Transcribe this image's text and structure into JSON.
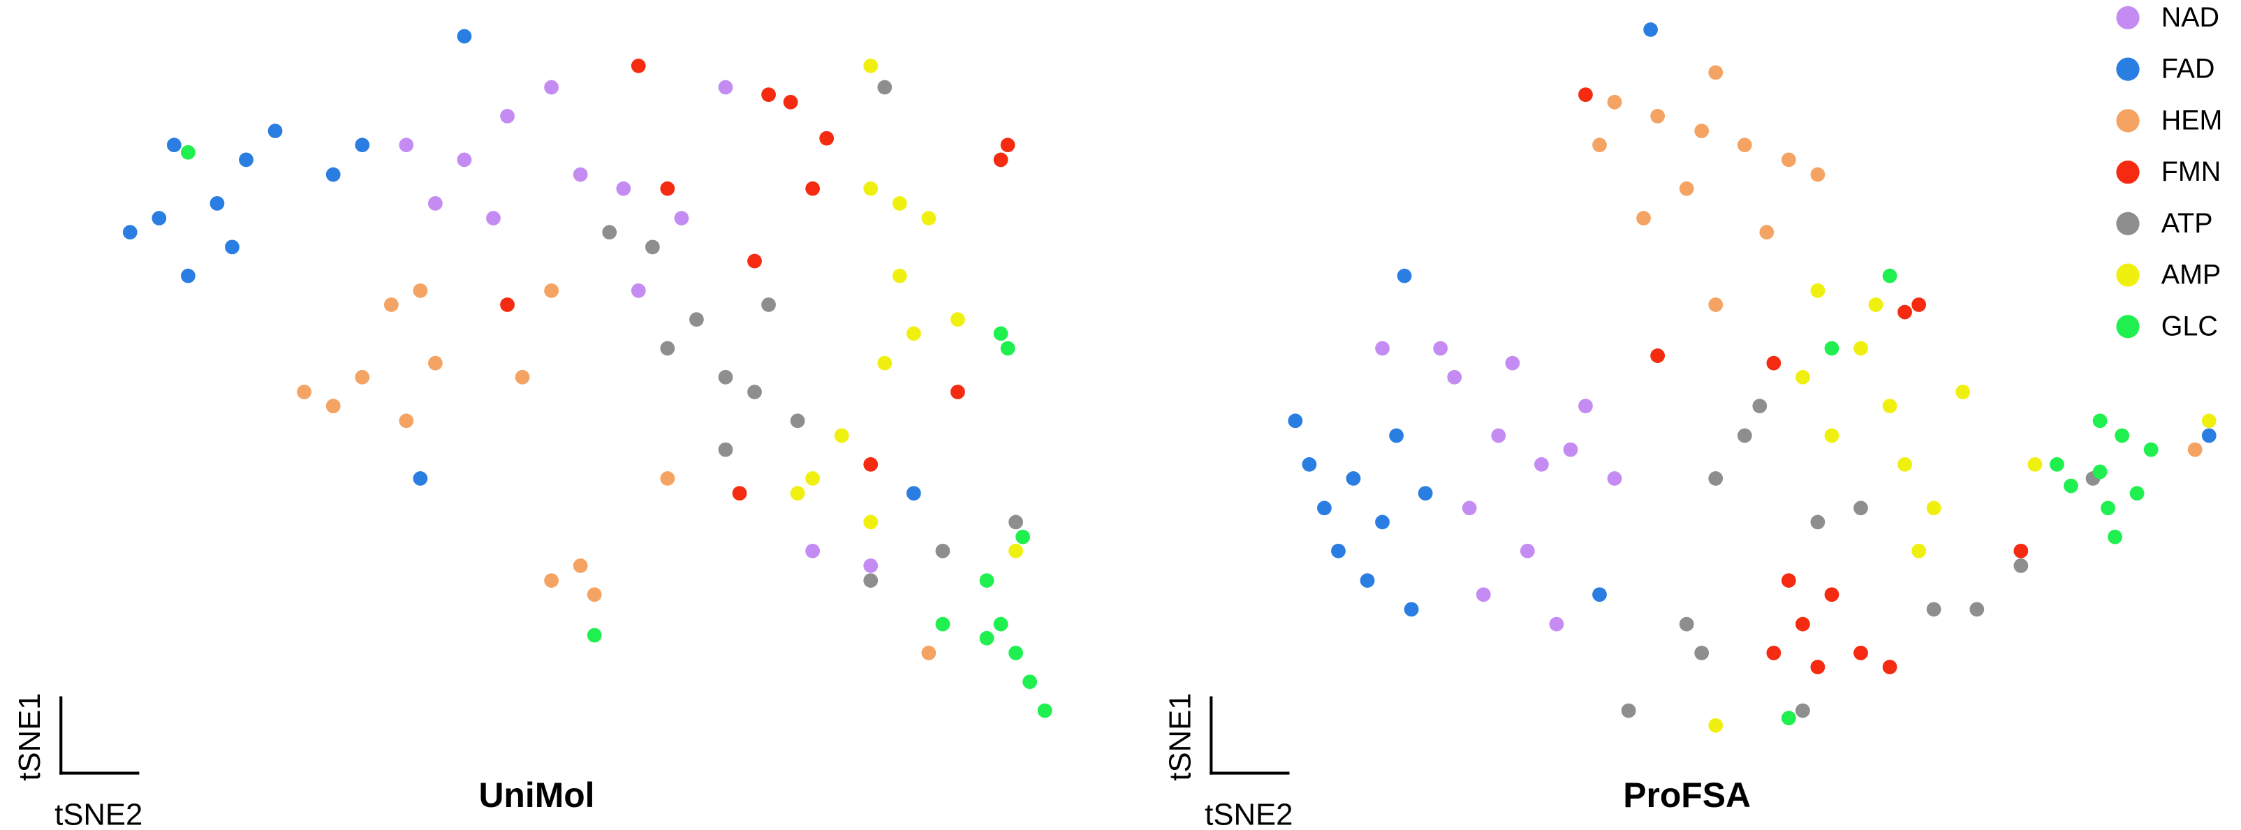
{
  "chart_data": [
    {
      "type": "scatter",
      "title": "UniMol",
      "x_label": "tSNE2",
      "y_label": "tSNE1",
      "xlim": [
        0,
        100
      ],
      "ylim": [
        0,
        100
      ],
      "series": [
        {
          "name": "NAD",
          "color": "#c48cf2",
          "x": [
            42.0,
            37.7,
            34.8,
            46.4,
            49.3,
            40.6,
            31.9,
            53.6,
            55.1,
            59.4,
            63.8,
            78.3,
            72.5
          ],
          "y": [
            86.3,
            80.4,
            74.5,
            90.2,
            78.4,
            72.5,
            82.4,
            76.5,
            62.7,
            72.5,
            90.2,
            25.5,
            27.5
          ]
        },
        {
          "name": "FAD",
          "color": "#2a7de1",
          "x": [
            13.0,
            7.2,
            4.3,
            10.1,
            15.9,
            18.8,
            8.7,
            14.5,
            24.6,
            27.5,
            33.3,
            82.6,
            37.7
          ],
          "y": [
            74.5,
            72.5,
            70.6,
            64.7,
            80.4,
            84.3,
            82.4,
            68.6,
            78.4,
            82.4,
            37.3,
            35.3,
            97.1
          ]
        },
        {
          "name": "HEM",
          "color": "#f5a362",
          "x": [
            24.6,
            27.5,
            21.7,
            31.9,
            34.8,
            30.4,
            33.3,
            49.3,
            46.4,
            50.7,
            43.5,
            46.4,
            84.1,
            58.0
          ],
          "y": [
            47.1,
            51.0,
            49.0,
            45.1,
            52.9,
            60.8,
            62.7,
            25.5,
            23.5,
            21.6,
            51.0,
            62.7,
            13.7,
            37.3
          ]
        },
        {
          "name": "FMN",
          "color": "#f42b10",
          "x": [
            92.0,
            91.3,
            68.1,
            70.3,
            73.9,
            55.1,
            42.0,
            58.0,
            66.7,
            72.5,
            78.3,
            65.2,
            87.0
          ],
          "y": [
            82.4,
            80.4,
            89.2,
            88.2,
            83.3,
            93.1,
            60.8,
            76.5,
            66.7,
            76.5,
            39.2,
            35.3,
            49.0
          ]
        },
        {
          "name": "ATP",
          "color": "#8e8e8e",
          "x": [
            63.8,
            66.7,
            60.9,
            58.0,
            56.5,
            68.1,
            71.0,
            78.3,
            85.5,
            79.7,
            92.8,
            63.8,
            52.2
          ],
          "y": [
            51.0,
            49.0,
            58.8,
            54.9,
            68.6,
            60.8,
            45.1,
            23.5,
            27.5,
            90.2,
            31.4,
            41.2,
            70.6
          ]
        },
        {
          "name": "AMP",
          "color": "#f0f010",
          "x": [
            81.2,
            78.3,
            84.1,
            79.7,
            82.6,
            87.0,
            81.2,
            72.5,
            71.0,
            78.3,
            92.8,
            75.4,
            78.3
          ],
          "y": [
            74.5,
            76.5,
            72.5,
            52.9,
            56.9,
            58.8,
            64.7,
            37.3,
            35.3,
            31.4,
            27.5,
            43.1,
            93.1
          ]
        },
        {
          "name": "GLC",
          "color": "#1ff050",
          "x": [
            91.3,
            92.0,
            91.3,
            94.2,
            92.8,
            89.9,
            85.5,
            95.7,
            93.5,
            89.9,
            50.7,
            10.1
          ],
          "y": [
            56.9,
            54.9,
            17.6,
            9.8,
            13.7,
            15.7,
            17.6,
            5.9,
            29.4,
            23.5,
            16.1,
            81.4
          ]
        }
      ]
    },
    {
      "type": "scatter",
      "title": "ProFSA",
      "x_label": "tSNE2",
      "y_label": "tSNE1",
      "xlim": [
        0,
        100
      ],
      "ylim": [
        0,
        100
      ],
      "legend": "upper right",
      "series": [
        {
          "name": "NAD",
          "color": "#c48cf2",
          "x": [
            21.7,
            26.1,
            30.4,
            33.3,
            23.2,
            29.0,
            20.3,
            27.5,
            24.6,
            34.8,
            31.9,
            37.7,
            14.5
          ],
          "y": [
            51.0,
            43.1,
            39.2,
            41.2,
            33.3,
            27.5,
            54.9,
            52.9,
            21.6,
            47.1,
            17.6,
            37.3,
            54.9
          ]
        },
        {
          "name": "FAD",
          "color": "#2a7de1",
          "x": [
            11.6,
            7.2,
            14.5,
            10.1,
            15.9,
            13.0,
            8.7,
            17.4,
            5.8,
            18.8,
            16.7,
            36.2,
            97.1,
            41.3
          ],
          "y": [
            37.3,
            39.2,
            31.4,
            27.5,
            43.1,
            23.5,
            33.3,
            19.6,
            45.1,
            35.3,
            64.7,
            21.6,
            43.1,
            98.0
          ]
        },
        {
          "name": "HEM",
          "color": "#f5a362",
          "x": [
            46.4,
            42.0,
            50.7,
            55.1,
            44.9,
            37.7,
            58.0,
            40.6,
            47.8,
            52.9,
            95.7,
            47.8,
            36.2
          ],
          "y": [
            84.3,
            86.3,
            82.4,
            80.4,
            76.5,
            88.2,
            78.4,
            72.5,
            92.2,
            70.6,
            41.2,
            60.8,
            82.4
          ]
        },
        {
          "name": "FMN",
          "color": "#f42b10",
          "x": [
            56.5,
            53.6,
            59.4,
            62.3,
            65.2,
            55.1,
            58.0,
            66.7,
            68.1,
            34.8,
            42.0,
            53.6,
            78.3
          ],
          "y": [
            17.6,
            13.7,
            21.6,
            13.7,
            11.8,
            23.5,
            11.8,
            59.8,
            60.8,
            89.2,
            53.9,
            52.9,
            27.5
          ]
        },
        {
          "name": "ATP",
          "color": "#8e8e8e",
          "x": [
            46.4,
            44.9,
            47.8,
            50.7,
            52.2,
            58.0,
            69.6,
            73.9,
            62.3,
            56.5,
            39.1,
            78.3,
            85.5
          ],
          "y": [
            13.7,
            17.6,
            37.3,
            43.1,
            47.1,
            31.4,
            19.6,
            19.6,
            33.3,
            5.9,
            5.9,
            25.5,
            37.3
          ]
        },
        {
          "name": "AMP",
          "color": "#f0f010",
          "x": [
            62.3,
            65.2,
            66.7,
            59.4,
            56.5,
            69.6,
            63.8,
            72.5,
            58.0,
            68.1,
            97.1,
            47.8,
            79.7
          ],
          "y": [
            54.9,
            47.1,
            39.2,
            43.1,
            51.0,
            33.3,
            60.8,
            49.0,
            62.7,
            27.5,
            45.1,
            3.9,
            39.2
          ]
        },
        {
          "name": "GLC",
          "color": "#1ff050",
          "x": [
            86.2,
            83.3,
            87.0,
            88.4,
            89.9,
            81.9,
            87.7,
            91.3,
            65.2,
            55.1,
            59.4,
            86.2
          ],
          "y": [
            38.2,
            36.3,
            33.3,
            43.1,
            35.3,
            39.2,
            29.4,
            41.2,
            64.7,
            4.9,
            54.9,
            45.1
          ]
        }
      ]
    }
  ]
}
